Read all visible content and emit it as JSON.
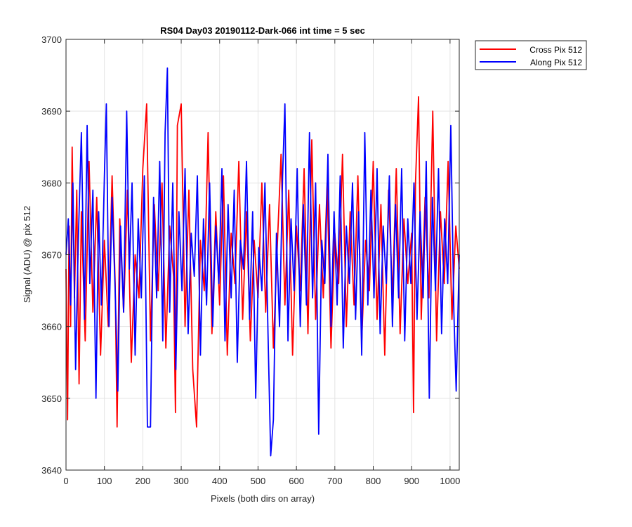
{
  "chart_data": {
    "type": "line",
    "title": "RS04 Day03 20190112-Dark-066 int time = 5 sec",
    "xlabel": "Pixels (both dirs on array)",
    "ylabel": "Signal (ADU) @ pix 512",
    "xlim": [
      0,
      1024
    ],
    "ylim": [
      3640,
      3700
    ],
    "xticks": [
      0,
      100,
      200,
      300,
      400,
      500,
      600,
      700,
      800,
      900,
      1000
    ],
    "yticks": [
      3640,
      3650,
      3660,
      3670,
      3680,
      3690,
      3700
    ],
    "grid": true,
    "legend_position": "outside-top-right",
    "series": [
      {
        "name": "Cross Pix 512",
        "color": "#ff0000",
        "points": [
          [
            0,
            3668
          ],
          [
            4,
            3647
          ],
          [
            8,
            3674
          ],
          [
            12,
            3660
          ],
          [
            16,
            3685
          ],
          [
            22,
            3664
          ],
          [
            28,
            3679
          ],
          [
            34,
            3652
          ],
          [
            40,
            3676
          ],
          [
            50,
            3658
          ],
          [
            60,
            3683
          ],
          [
            70,
            3662
          ],
          [
            80,
            3678
          ],
          [
            90,
            3656
          ],
          [
            100,
            3672
          ],
          [
            110,
            3660
          ],
          [
            120,
            3681
          ],
          [
            128,
            3666
          ],
          [
            133,
            3646
          ],
          [
            140,
            3675
          ],
          [
            150,
            3662
          ],
          [
            160,
            3679
          ],
          [
            170,
            3655
          ],
          [
            180,
            3670
          ],
          [
            190,
            3664
          ],
          [
            200,
            3682
          ],
          [
            210,
            3691
          ],
          [
            220,
            3658
          ],
          [
            230,
            3677
          ],
          [
            240,
            3665
          ],
          [
            250,
            3680
          ],
          [
            260,
            3657
          ],
          [
            270,
            3674
          ],
          [
            280,
            3667
          ],
          [
            285,
            3648
          ],
          [
            290,
            3688
          ],
          [
            300,
            3691
          ],
          [
            310,
            3660
          ],
          [
            320,
            3679
          ],
          [
            330,
            3654
          ],
          [
            340,
            3646
          ],
          [
            350,
            3672
          ],
          [
            360,
            3665
          ],
          [
            370,
            3687
          ],
          [
            380,
            3659
          ],
          [
            390,
            3676
          ],
          [
            400,
            3663
          ],
          [
            410,
            3681
          ],
          [
            420,
            3656
          ],
          [
            430,
            3673
          ],
          [
            440,
            3666
          ],
          [
            450,
            3683
          ],
          [
            460,
            3661
          ],
          [
            470,
            3676
          ],
          [
            480,
            3658
          ],
          [
            490,
            3672
          ],
          [
            500,
            3664
          ],
          [
            510,
            3680
          ],
          [
            520,
            3662
          ],
          [
            530,
            3677
          ],
          [
            540,
            3657
          ],
          [
            550,
            3671
          ],
          [
            560,
            3684
          ],
          [
            570,
            3663
          ],
          [
            580,
            3679
          ],
          [
            590,
            3656
          ],
          [
            600,
            3674
          ],
          [
            610,
            3665
          ],
          [
            620,
            3682
          ],
          [
            630,
            3659
          ],
          [
            640,
            3686
          ],
          [
            650,
            3661
          ],
          [
            660,
            3677
          ],
          [
            670,
            3664
          ],
          [
            680,
            3680
          ],
          [
            690,
            3657
          ],
          [
            700,
            3673
          ],
          [
            710,
            3666
          ],
          [
            720,
            3684
          ],
          [
            730,
            3660
          ],
          [
            740,
            3676
          ],
          [
            750,
            3663
          ],
          [
            760,
            3681
          ],
          [
            770,
            3658
          ],
          [
            780,
            3672
          ],
          [
            790,
            3665
          ],
          [
            800,
            3683
          ],
          [
            810,
            3661
          ],
          [
            820,
            3677
          ],
          [
            830,
            3656
          ],
          [
            840,
            3679
          ],
          [
            850,
            3664
          ],
          [
            860,
            3682
          ],
          [
            870,
            3659
          ],
          [
            880,
            3675
          ],
          [
            890,
            3666
          ],
          [
            900,
            3673
          ],
          [
            905,
            3648
          ],
          [
            910,
            3680
          ],
          [
            918,
            3692
          ],
          [
            925,
            3661
          ],
          [
            935,
            3678
          ],
          [
            945,
            3664
          ],
          [
            955,
            3690
          ],
          [
            965,
            3658
          ],
          [
            975,
            3676
          ],
          [
            985,
            3666
          ],
          [
            995,
            3683
          ],
          [
            1005,
            3661
          ],
          [
            1015,
            3674
          ],
          [
            1024,
            3668
          ]
        ]
      },
      {
        "name": "Along Pix 512",
        "color": "#0000ff",
        "points": [
          [
            0,
            3670
          ],
          [
            6,
            3675
          ],
          [
            12,
            3663
          ],
          [
            18,
            3680
          ],
          [
            25,
            3654
          ],
          [
            32,
            3672
          ],
          [
            40,
            3687
          ],
          [
            48,
            3661
          ],
          [
            55,
            3688
          ],
          [
            62,
            3666
          ],
          [
            70,
            3679
          ],
          [
            78,
            3650
          ],
          [
            85,
            3676
          ],
          [
            92,
            3663
          ],
          [
            100,
            3681
          ],
          [
            105,
            3691
          ],
          [
            112,
            3660
          ],
          [
            120,
            3678
          ],
          [
            128,
            3665
          ],
          [
            135,
            3651
          ],
          [
            142,
            3674
          ],
          [
            150,
            3662
          ],
          [
            158,
            3690
          ],
          [
            165,
            3668
          ],
          [
            172,
            3680
          ],
          [
            180,
            3656
          ],
          [
            188,
            3675
          ],
          [
            196,
            3664
          ],
          [
            204,
            3681
          ],
          [
            212,
            3646
          ],
          [
            220,
            3646
          ],
          [
            228,
            3678
          ],
          [
            236,
            3664
          ],
          [
            244,
            3683
          ],
          [
            252,
            3658
          ],
          [
            258,
            3687
          ],
          [
            264,
            3696
          ],
          [
            270,
            3662
          ],
          [
            278,
            3680
          ],
          [
            286,
            3654
          ],
          [
            294,
            3676
          ],
          [
            302,
            3665
          ],
          [
            310,
            3682
          ],
          [
            318,
            3659
          ],
          [
            326,
            3673
          ],
          [
            334,
            3667
          ],
          [
            342,
            3681
          ],
          [
            350,
            3656
          ],
          [
            358,
            3675
          ],
          [
            366,
            3663
          ],
          [
            374,
            3680
          ],
          [
            382,
            3660
          ],
          [
            390,
            3674
          ],
          [
            398,
            3666
          ],
          [
            406,
            3682
          ],
          [
            414,
            3658
          ],
          [
            422,
            3677
          ],
          [
            430,
            3664
          ],
          [
            438,
            3679
          ],
          [
            446,
            3655
          ],
          [
            454,
            3672
          ],
          [
            462,
            3668
          ],
          [
            470,
            3683
          ],
          [
            478,
            3661
          ],
          [
            486,
            3676
          ],
          [
            494,
            3650
          ],
          [
            502,
            3671
          ],
          [
            510,
            3665
          ],
          [
            518,
            3680
          ],
          [
            526,
            3659
          ],
          [
            533,
            3642
          ],
          [
            540,
            3647
          ],
          [
            548,
            3673
          ],
          [
            556,
            3660
          ],
          [
            564,
            3681
          ],
          [
            570,
            3691
          ],
          [
            578,
            3658
          ],
          [
            586,
            3675
          ],
          [
            594,
            3665
          ],
          [
            602,
            3682
          ],
          [
            610,
            3660
          ],
          [
            618,
            3677
          ],
          [
            626,
            3663
          ],
          [
            634,
            3687
          ],
          [
            642,
            3664
          ],
          [
            650,
            3680
          ],
          [
            658,
            3645
          ],
          [
            666,
            3672
          ],
          [
            674,
            3666
          ],
          [
            682,
            3684
          ],
          [
            690,
            3660
          ],
          [
            698,
            3676
          ],
          [
            706,
            3663
          ],
          [
            714,
            3681
          ],
          [
            722,
            3657
          ],
          [
            730,
            3674
          ],
          [
            738,
            3666
          ],
          [
            746,
            3680
          ],
          [
            754,
            3661
          ],
          [
            762,
            3676
          ],
          [
            770,
            3656
          ],
          [
            778,
            3687
          ],
          [
            786,
            3663
          ],
          [
            794,
            3679
          ],
          [
            802,
            3664
          ],
          [
            810,
            3682
          ],
          [
            818,
            3659
          ],
          [
            826,
            3674
          ],
          [
            834,
            3666
          ],
          [
            842,
            3681
          ],
          [
            850,
            3660
          ],
          [
            858,
            3677
          ],
          [
            866,
            3664
          ],
          [
            874,
            3682
          ],
          [
            882,
            3658
          ],
          [
            890,
            3675
          ],
          [
            898,
            3666
          ],
          [
            906,
            3680
          ],
          [
            914,
            3661
          ],
          [
            922,
            3676
          ],
          [
            930,
            3664
          ],
          [
            938,
            3683
          ],
          [
            946,
            3650
          ],
          [
            954,
            3678
          ],
          [
            962,
            3665
          ],
          [
            970,
            3682
          ],
          [
            978,
            3659
          ],
          [
            986,
            3675
          ],
          [
            994,
            3666
          ],
          [
            1002,
            3688
          ],
          [
            1010,
            3662
          ],
          [
            1016,
            3651
          ],
          [
            1024,
            3670
          ]
        ]
      }
    ]
  }
}
